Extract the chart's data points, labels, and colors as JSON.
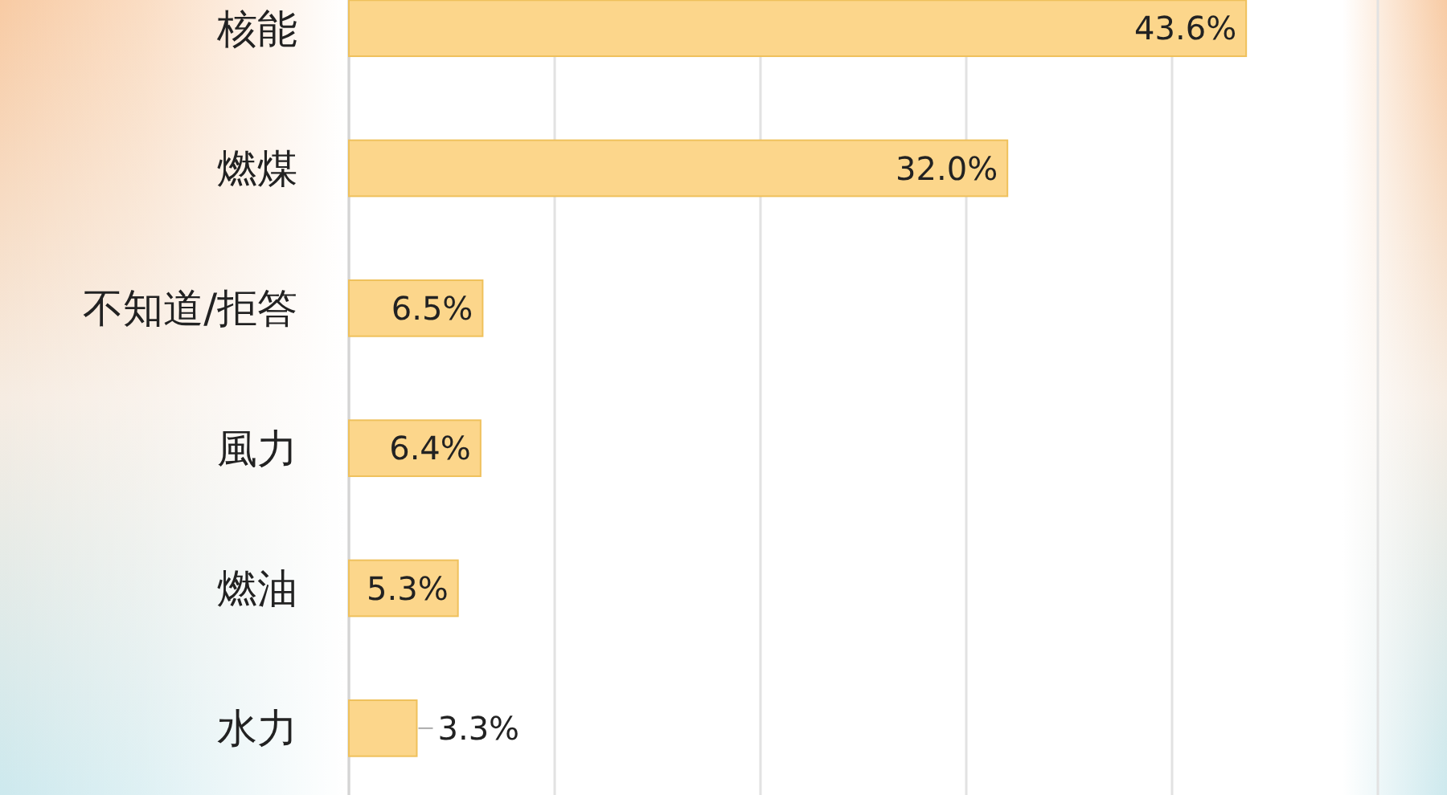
{
  "chart_data": {
    "type": "bar",
    "orientation": "horizontal",
    "categories": [
      "核能",
      "燃煤",
      "不知道/拒答",
      "風力",
      "燃油",
      "水力"
    ],
    "values": [
      43.6,
      32.0,
      6.5,
      6.4,
      5.3,
      3.3
    ],
    "color": "#fcd68b",
    "xlim": [
      0,
      50
    ],
    "xticks": [
      {
        "value": 0,
        "label": null
      },
      {
        "value": 10,
        "label": null
      },
      {
        "value": 20,
        "label": null
      },
      {
        "value": 30,
        "label": null
      },
      {
        "value": 40,
        "label": null
      },
      {
        "value": 50,
        "label": null
      }
    ],
    "grid": "x",
    "tick_labels": "y",
    "value_labels": [
      "43.6%",
      "32.0%",
      "6.5%",
      "6.4%",
      "5.3%",
      "3.3%"
    ]
  }
}
